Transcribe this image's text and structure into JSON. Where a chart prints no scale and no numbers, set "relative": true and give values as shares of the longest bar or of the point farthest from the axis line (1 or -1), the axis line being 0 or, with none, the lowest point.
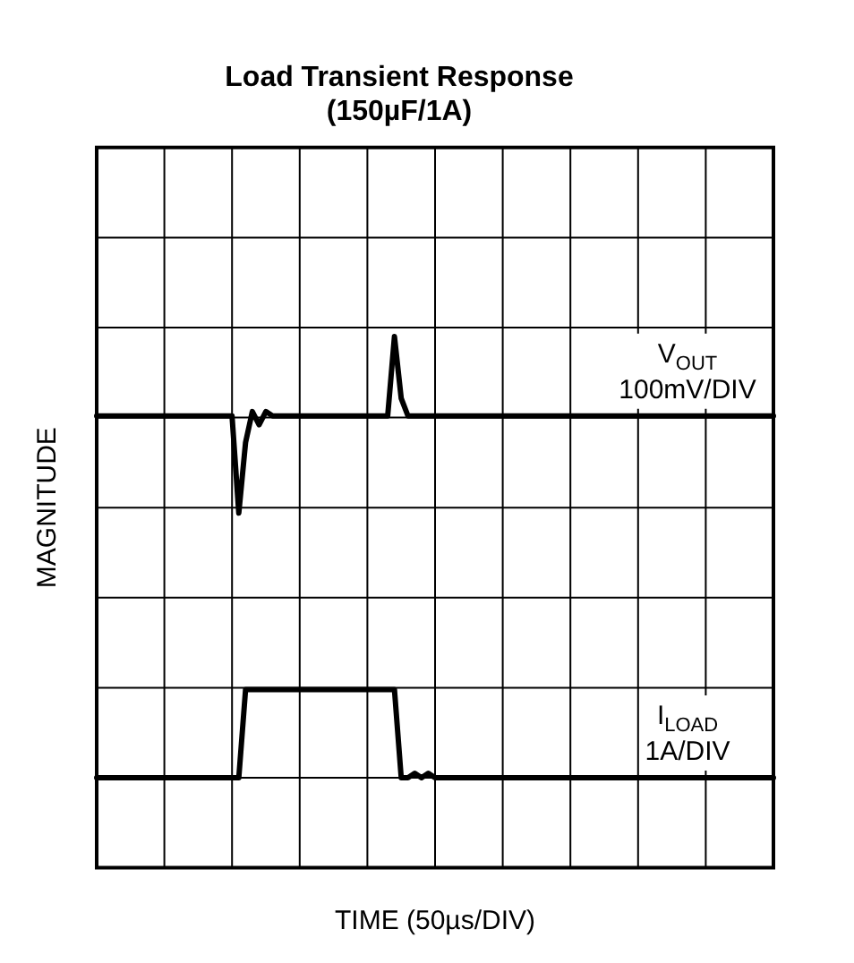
{
  "chart_data": {
    "type": "line",
    "title": "Load Transient Response\n(150µF/1A)",
    "xlabel": "TIME (50µs/DIV)",
    "ylabel": "MAGNITUDE",
    "relative": true,
    "categories": [
      null,
      null,
      null,
      null,
      null,
      null,
      null,
      null,
      null,
      null,
      null,
      null,
      null,
      null,
      null,
      null,
      null,
      null,
      null,
      null,
      null,
      null,
      null,
      null,
      null,
      null,
      null,
      null,
      null,
      null,
      null,
      null,
      null,
      null,
      null,
      null,
      null,
      null,
      null,
      null,
      null,
      null,
      null,
      null,
      null,
      null,
      null,
      null,
      null,
      null,
      null,
      null,
      null,
      null,
      null,
      null,
      null,
      null,
      null,
      null,
      null,
      null,
      null,
      null,
      null,
      null,
      null,
      null,
      null,
      null,
      null,
      null,
      null,
      null,
      null,
      null,
      null,
      null,
      null,
      null,
      null,
      null,
      null,
      null,
      null,
      null,
      null,
      null,
      null,
      null,
      null,
      null,
      null,
      null,
      null,
      null,
      null,
      null,
      null,
      null,
      null
    ],
    "grid": true,
    "legend": false,
    "marker": "none",
    "line_style": "solid",
    "series": [
      {
        "name": "V$_{OUT}$ 100mV/DIV",
        "color": "#000000",
        "values": [
          0.82,
          0.82,
          0.82,
          0.82,
          0.82,
          0.82,
          0.82,
          0.82,
          0.82,
          0.82,
          0.82,
          0.82,
          0.82,
          0.82,
          0.82,
          0.82,
          0.82,
          0.82,
          0.82,
          0.82,
          0.82,
          0.6,
          0.76,
          0.83,
          0.8,
          0.83,
          0.82,
          0.82,
          0.82,
          0.82,
          0.82,
          0.82,
          0.82,
          0.82,
          0.82,
          0.82,
          0.82,
          0.82,
          0.82,
          0.82,
          0.82,
          0.82,
          0.82,
          0.82,
          1,
          0.86,
          0.82,
          0.82,
          0.82,
          0.82,
          0.82,
          0.82,
          0.82,
          0.82,
          0.82,
          0.82,
          0.82,
          0.82,
          0.82,
          0.82,
          0.82,
          0.82,
          0.82,
          0.82,
          0.82,
          0.82,
          0.82,
          0.82,
          0.82,
          0.82,
          0.82,
          0.82,
          0.82,
          0.82,
          0.82,
          0.82,
          0.82,
          0.82,
          0.82,
          0.82,
          0.82,
          0.82,
          0.82,
          0.82,
          0.82,
          0.82,
          0.82,
          0.82,
          0.82,
          0.82,
          0.82,
          0.82,
          0.82,
          0.82,
          0.82,
          0.82,
          0.82,
          0.82,
          0.82,
          0.82,
          0.82
        ]
      },
      {
        "name": "I$_{LOAD}$ 1A/DIV",
        "color": "#000000",
        "values": [
          0,
          0,
          0,
          0,
          0,
          0,
          0,
          0,
          0,
          0,
          0,
          0,
          0,
          0,
          0,
          0,
          0,
          0,
          0,
          0,
          0,
          0,
          0.2,
          0.2,
          0.2,
          0.2,
          0.2,
          0.2,
          0.2,
          0.2,
          0.2,
          0.2,
          0.2,
          0.2,
          0.2,
          0.2,
          0.2,
          0.2,
          0.2,
          0.2,
          0.2,
          0.2,
          0.2,
          0.2,
          0.2,
          0,
          0,
          0.01,
          0,
          0.01,
          0,
          0,
          0,
          0,
          0,
          0,
          0,
          0,
          0,
          0,
          0,
          0,
          0,
          0,
          0,
          0,
          0,
          0,
          0,
          0,
          0,
          0,
          0,
          0,
          0,
          0,
          0,
          0,
          0,
          0,
          0,
          0,
          0,
          0,
          0,
          0,
          0,
          0,
          0,
          0,
          0,
          0,
          0,
          0,
          0,
          0,
          0,
          0,
          0,
          0,
          0
        ]
      }
    ]
  }
}
